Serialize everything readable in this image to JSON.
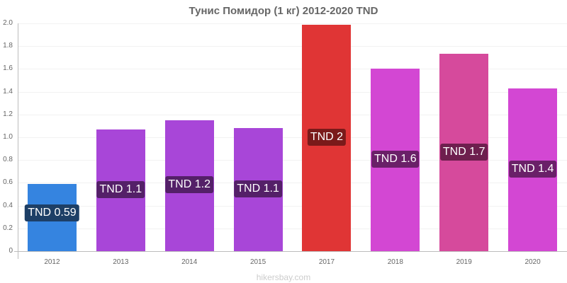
{
  "title": "Тунис Помидор (1 кг) 2012-2020 TND",
  "watermark": "hikersbay.com",
  "y_ticks": [
    "0",
    "0.2",
    "0.4",
    "0.6",
    "0.8",
    "1.0",
    "1.2",
    "1.4",
    "1.6",
    "1.8",
    "2.0"
  ],
  "bars": [
    {
      "year": "2012",
      "value": 0.59,
      "label": "TND 0.59",
      "color": "#3584e0",
      "label_bg": "#1d3f66"
    },
    {
      "year": "2013",
      "value": 1.07,
      "label": "TND 1.1",
      "color": "#a846d8",
      "label_bg": "#542068"
    },
    {
      "year": "2014",
      "value": 1.15,
      "label": "TND 1.2",
      "color": "#a846d8",
      "label_bg": "#542068"
    },
    {
      "year": "2015",
      "value": 1.08,
      "label": "TND 1.1",
      "color": "#a846d8",
      "label_bg": "#542068"
    },
    {
      "year": "2017",
      "value": 1.99,
      "label": "TND 2",
      "color": "#e03535",
      "label_bg": "#7a1a1a"
    },
    {
      "year": "2018",
      "value": 1.6,
      "label": "TND 1.6",
      "color": "#d347d3",
      "label_bg": "#6a2068"
    },
    {
      "year": "2019",
      "value": 1.73,
      "label": "TND 1.7",
      "color": "#d64a9c",
      "label_bg": "#6e1f4e"
    },
    {
      "year": "2020",
      "value": 1.43,
      "label": "TND 1.4",
      "color": "#d347d3",
      "label_bg": "#6a2068"
    }
  ],
  "chart_data": {
    "type": "bar",
    "title": "Тунис Помидор (1 кг) 2012-2020 TND",
    "xlabel": "",
    "ylabel": "",
    "categories": [
      "2012",
      "2013",
      "2014",
      "2015",
      "2017",
      "2018",
      "2019",
      "2020"
    ],
    "values": [
      0.59,
      1.07,
      1.15,
      1.08,
      1.99,
      1.6,
      1.73,
      1.43
    ],
    "data_labels": [
      "TND 0.59",
      "TND 1.1",
      "TND 1.2",
      "TND 1.1",
      "TND 2",
      "TND 1.6",
      "TND 1.7",
      "TND 1.4"
    ],
    "ylim": [
      0,
      2.0
    ],
    "y_ticks": [
      0,
      0.2,
      0.4,
      0.6,
      0.8,
      1.0,
      1.2,
      1.4,
      1.6,
      1.8,
      2.0
    ],
    "grid": true,
    "legend": null,
    "annotations": [
      "hikersbay.com"
    ]
  }
}
